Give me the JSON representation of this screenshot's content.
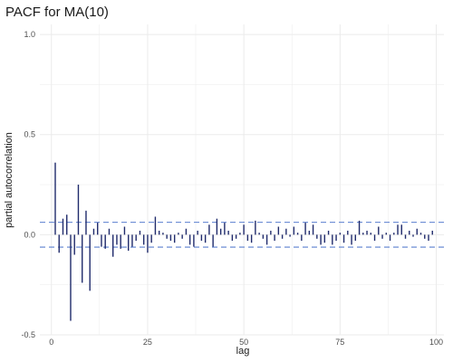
{
  "chart_data": {
    "type": "bar",
    "title": "PACF for MA(10)",
    "xlabel": "lag",
    "ylabel": "partial autocorrelation",
    "xlim": [
      -3,
      102
    ],
    "ylim": [
      -0.5,
      1.05
    ],
    "x_ticks": [
      0,
      25,
      50,
      75,
      100
    ],
    "x_tick_labels": [
      "0",
      "25",
      "50",
      "75",
      "100"
    ],
    "y_ticks": [
      -0.5,
      0.0,
      0.5,
      1.0
    ],
    "y_tick_labels": [
      "-0.5",
      "0.0",
      "0.5",
      "1.0"
    ],
    "grid": true,
    "confidence_bounds": [
      0.062,
      -0.062
    ],
    "colors": {
      "bars": "#1f2a6b",
      "bounds": "#5b7fcf",
      "grid": "#ebebeb"
    },
    "series": [
      {
        "x": [
          1,
          2,
          3,
          4,
          5,
          6,
          7,
          8,
          9,
          10,
          11,
          12,
          13,
          14,
          15,
          16,
          17,
          18,
          19,
          20,
          21,
          22,
          23,
          24,
          25,
          26,
          27,
          28,
          29,
          30,
          31,
          32,
          33,
          34,
          35,
          36,
          37,
          38,
          39,
          40,
          41,
          42,
          43,
          44,
          45,
          46,
          47,
          48,
          49,
          50,
          51,
          52,
          53,
          54,
          55,
          56,
          57,
          58,
          59,
          60,
          61,
          62,
          63,
          64,
          65,
          66,
          67,
          68,
          69,
          70,
          71,
          72,
          73,
          74,
          75,
          76,
          77,
          78,
          79,
          80,
          81,
          82,
          83,
          84,
          85,
          86,
          87,
          88,
          89,
          90,
          91,
          92,
          93,
          94,
          95,
          96,
          97,
          98,
          99
        ],
        "values": [
          0.36,
          -0.09,
          0.08,
          0.1,
          -0.43,
          -0.1,
          0.25,
          -0.24,
          0.12,
          -0.28,
          0.03,
          0.06,
          -0.06,
          -0.07,
          0.03,
          -0.11,
          -0.05,
          -0.07,
          0.04,
          -0.08,
          -0.06,
          -0.03,
          0.02,
          -0.05,
          -0.09,
          -0.04,
          0.09,
          0.02,
          0.01,
          -0.02,
          -0.03,
          -0.04,
          0.01,
          -0.02,
          0.03,
          -0.05,
          -0.06,
          0.02,
          -0.03,
          -0.04,
          0.05,
          -0.06,
          0.08,
          0.03,
          0.06,
          0.02,
          -0.03,
          -0.02,
          0.01,
          0.05,
          -0.03,
          -0.04,
          0.07,
          0.01,
          -0.02,
          -0.05,
          0.02,
          -0.03,
          0.04,
          -0.02,
          0.03,
          -0.01,
          0.04,
          0.01,
          -0.03,
          0.06,
          0.02,
          0.05,
          -0.02,
          -0.05,
          -0.04,
          0.02,
          -0.05,
          -0.03,
          0.01,
          -0.04,
          0.02,
          -0.05,
          -0.03,
          0.07,
          0.01,
          0.02,
          0.01,
          -0.03,
          0.04,
          -0.02,
          0.01,
          -0.03,
          0.01,
          0.05,
          0.05,
          -0.02,
          0.02,
          -0.01,
          0.03,
          0.01,
          -0.02,
          -0.03,
          0.02
        ]
      }
    ]
  }
}
